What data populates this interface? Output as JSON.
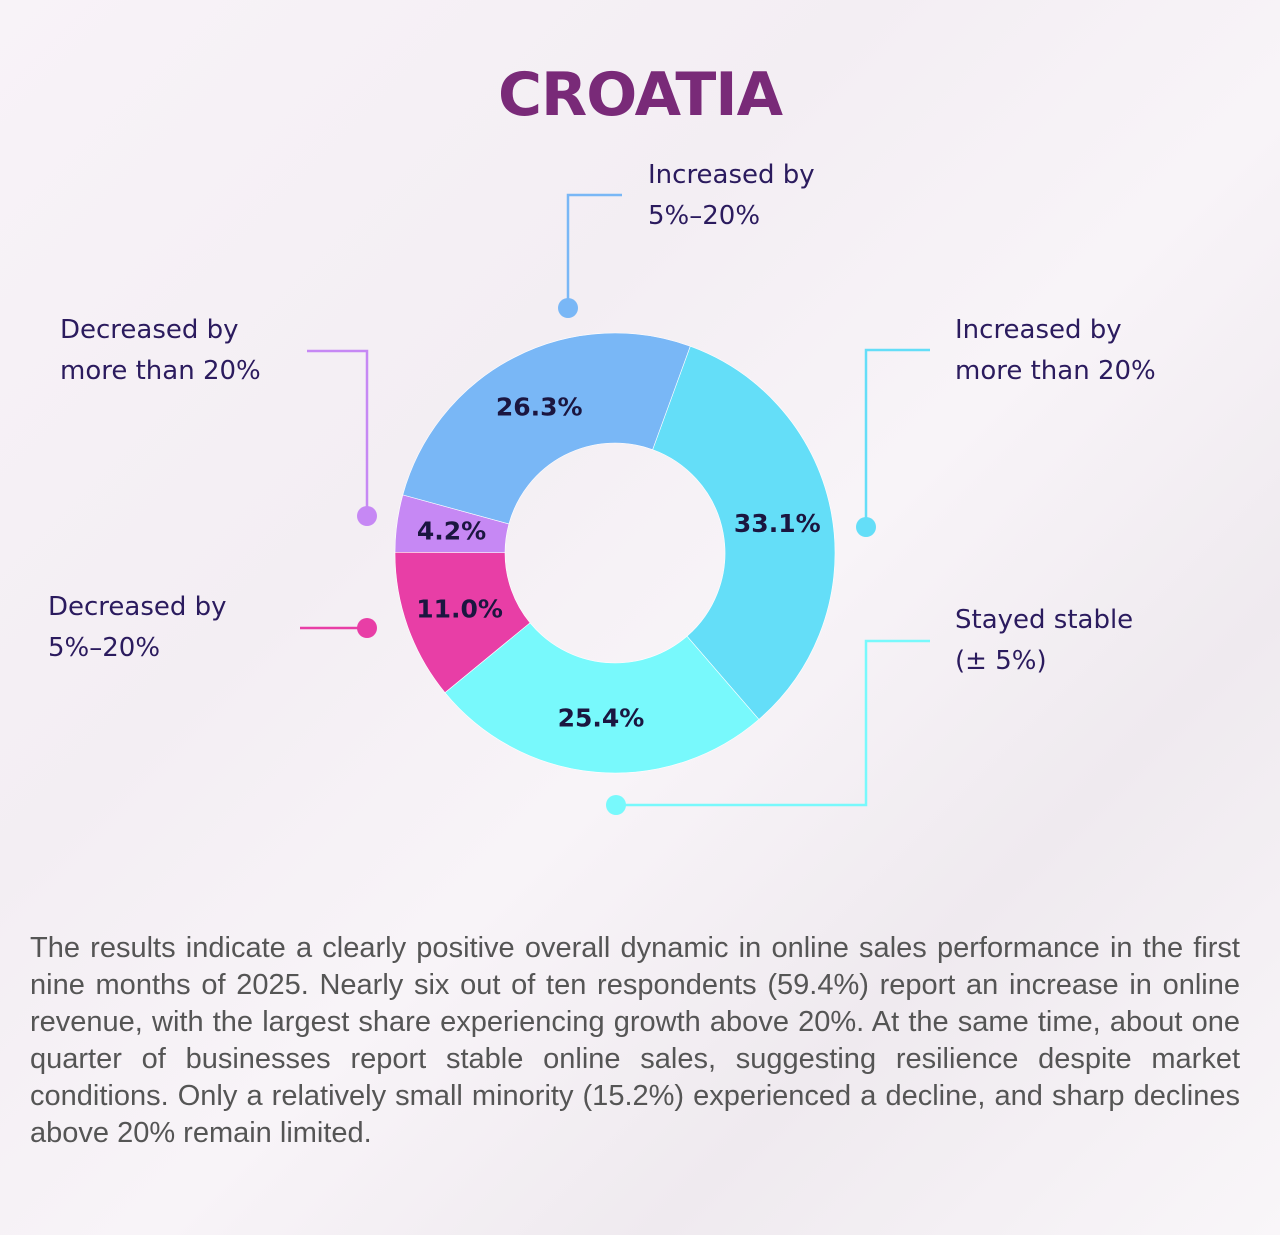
{
  "chart_data": {
    "type": "pie",
    "title": "CROATIA",
    "start_angle_deg": 20,
    "slices": [
      {
        "label": "Increased by more than 20%",
        "value": 33.1,
        "value_label": "33.1%",
        "color": "#64def8"
      },
      {
        "label": "Stayed stable (± 5%)",
        "value": 25.4,
        "value_label": "25.4%",
        "color": "#78f9fc"
      },
      {
        "label": "Decreased by 5%–20%",
        "value": 11.0,
        "value_label": "11.0%",
        "color": "#e83ea6"
      },
      {
        "label": "Decreased by more than 20%",
        "value": 4.2,
        "value_label": "4.2%",
        "color": "#c688f4"
      },
      {
        "label": "Increased by 5%–20%",
        "value": 26.3,
        "value_label": "26.3%",
        "color": "#79b7f6"
      }
    ]
  },
  "labels": {
    "inc_5_20": [
      "Increased by",
      "5%–20%"
    ],
    "inc_20": [
      "Increased by",
      "more than 20%"
    ],
    "stable": [
      "Stayed stable",
      "(± 5%)"
    ],
    "dec_5_20": [
      "Decreased by",
      "5%–20%"
    ],
    "dec_20": [
      "Decreased by",
      "more than 20%"
    ]
  },
  "paragraph": "The results indicate a clearly positive overall dynamic in online sales performance in the first nine months of 2025. Nearly six out of ten respondents (59.4%) report an increase in online revenue, with the largest share experiencing growth above 20%. At the same time, about one quarter of businesses report stable online sales, suggesting resilience despite market conditions. Only a relatively small minority (15.2%) experienced a decline, and sharp declines above 20% remain limited."
}
